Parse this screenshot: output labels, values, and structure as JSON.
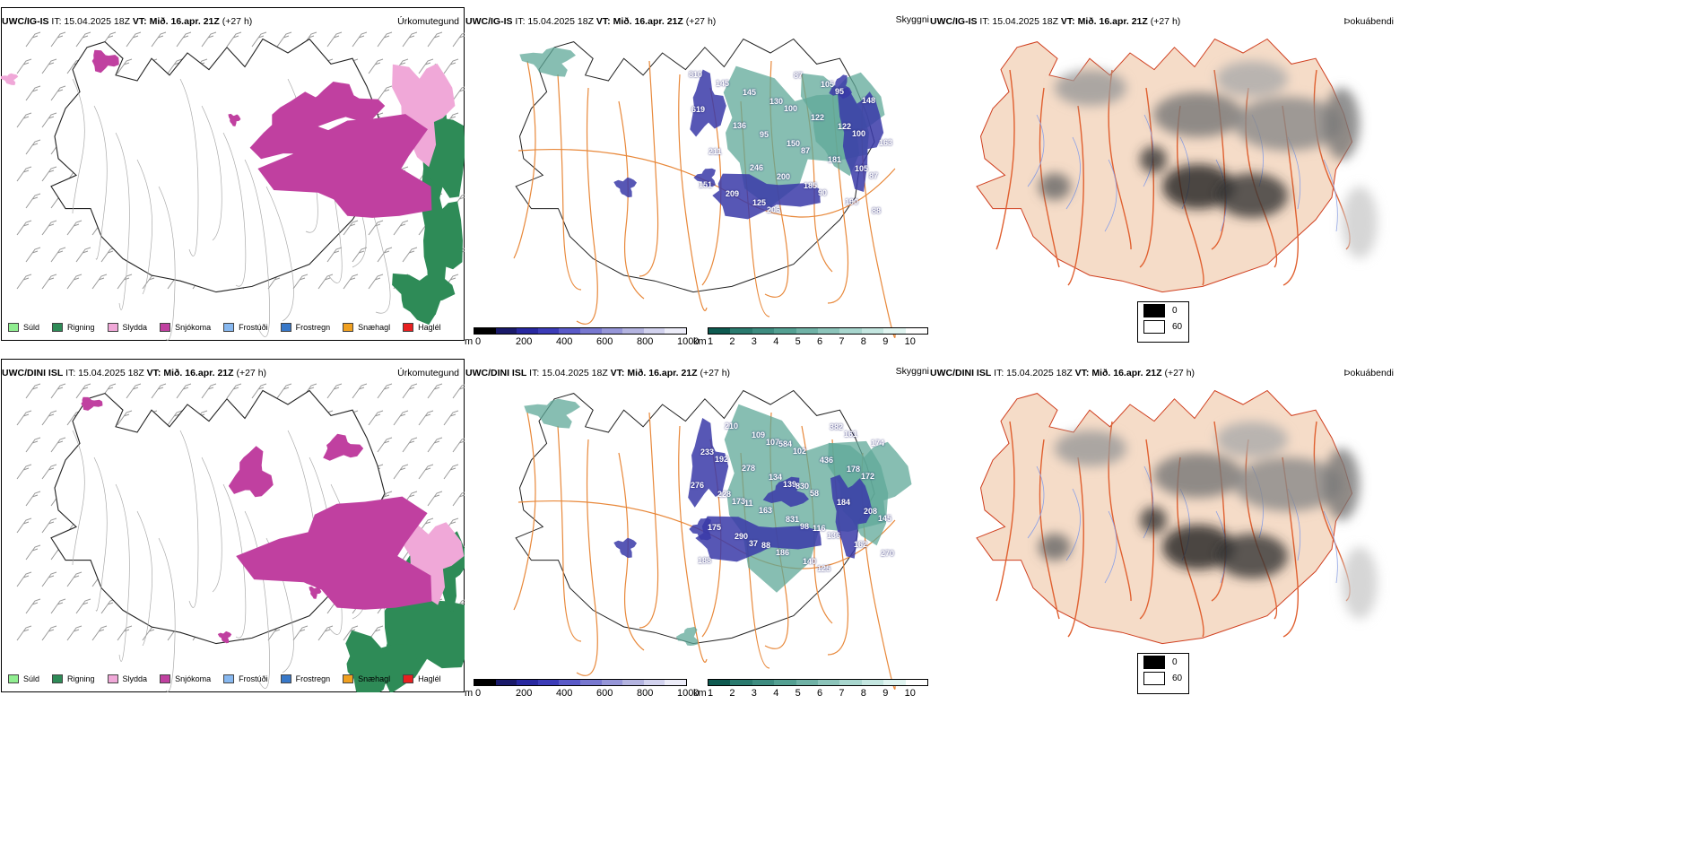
{
  "rows": [
    {
      "model": "UWC/IG-IS",
      "it": "IT: 15.04.2025 18Z",
      "vt_label": "VT:",
      "vt_value": "Mið. 16.apr. 21Z",
      "lead": "(+27 h)",
      "labels_cloud": [
        "810",
        "87",
        "100",
        "95",
        "90",
        "87",
        "100",
        "206",
        "246",
        "136",
        "145",
        "151",
        "163",
        "148",
        "190",
        "181",
        "122",
        "87",
        "200",
        "95",
        "145",
        "209",
        "211",
        "619",
        "88",
        "105",
        "122",
        "105",
        "185",
        "150",
        "130",
        "125"
      ],
      "dini": false
    },
    {
      "model": "UWC/DINI ISL",
      "it": "IT: 15.04.2025 18Z",
      "vt_label": "VT:",
      "vt_value": "Mið. 16.apr. 21Z",
      "lead": "(+27 h)",
      "labels_cloud": [
        "125",
        "98",
        "139",
        "107",
        "37",
        "173",
        "192",
        "188",
        "145",
        "172",
        "161",
        "136",
        "58",
        "102",
        "186",
        "163",
        "278",
        "210",
        "175",
        "276",
        "174",
        "162",
        "184",
        "436",
        "140",
        "831",
        "134",
        "109",
        "290",
        "228",
        "233",
        "270",
        "208",
        "178",
        "382",
        "116",
        "830",
        "584",
        "88",
        "11"
      ],
      "dini": true
    }
  ],
  "titles": {
    "precip": "Úrkomutegund",
    "cloud": "Skyggni",
    "fog": "Þokuábendi"
  },
  "precip_legend": [
    {
      "label": "Súld",
      "color": "#90ee90"
    },
    {
      "label": "Rigning",
      "color": "#2e8b57"
    },
    {
      "label": "Slydda",
      "color": "#f0a8d8"
    },
    {
      "label": "Snjókoma",
      "color": "#c040a0"
    },
    {
      "label": "Frostúði",
      "color": "#87b8f0"
    },
    {
      "label": "Frostregn",
      "color": "#3878c8"
    },
    {
      "label": "Snæhagl",
      "color": "#f0a020"
    },
    {
      "label": "Haglél",
      "color": "#e82020"
    }
  ],
  "colorbar_base": {
    "unit": "m",
    "ticks": [
      "0",
      "200",
      "400",
      "600",
      "800",
      "1000"
    ],
    "colors": [
      "#000000",
      "#1a1a6a",
      "#2828a0",
      "#3c3cb8",
      "#5a5ac8",
      "#7878d0",
      "#9696d8",
      "#b4b4e0",
      "#d2d2ee",
      "#ececf8"
    ]
  },
  "colorbar_vis": {
    "unit": "km",
    "ticks": [
      "1",
      "2",
      "3",
      "4",
      "5",
      "6",
      "7",
      "8",
      "9",
      "10"
    ],
    "colors": [
      "#0e5a50",
      "#2a7a6e",
      "#3e8c80",
      "#54a092",
      "#70b2a6",
      "#8cc4ba",
      "#a8d6ce",
      "#c4e6e0",
      "#e0f4f0",
      "#ffffff"
    ]
  },
  "fog_legend": [
    {
      "label": "0",
      "color": "#000000"
    },
    {
      "label": "60",
      "color": "#ffffff"
    }
  ]
}
